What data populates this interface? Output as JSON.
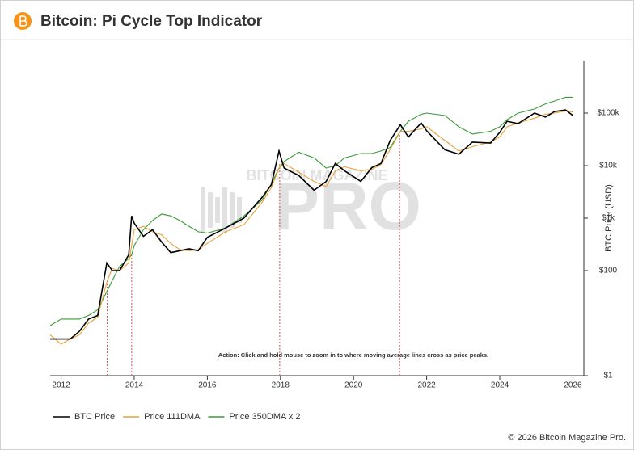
{
  "header": {
    "title": "Bitcoin: Pi Cycle Top Indicator"
  },
  "chart_data": {
    "type": "line",
    "log_y": true,
    "y_label": "BTC Price (USD)",
    "annotation": "Action: Click and hold mouse to zoom in to where moving average lines cross as price peaks.",
    "watermark_top": "BITCOIN MAGAZINE",
    "watermark": "PRO",
    "x": [
      2011.7,
      2012.0,
      2012.25,
      2012.5,
      2012.75,
      2013.0,
      2013.25,
      2013.4,
      2013.6,
      2013.85,
      2013.93,
      2014.0,
      2014.25,
      2014.5,
      2014.75,
      2015.0,
      2015.25,
      2015.5,
      2015.75,
      2016.0,
      2016.5,
      2017.0,
      2017.5,
      2017.75,
      2017.96,
      2018.1,
      2018.5,
      2018.92,
      2019.25,
      2019.5,
      2019.75,
      2020.2,
      2020.5,
      2020.75,
      2021.0,
      2021.28,
      2021.5,
      2021.85,
      2022.0,
      2022.5,
      2022.88,
      2023.25,
      2023.75,
      2024.0,
      2024.2,
      2024.5,
      2024.95,
      2025.25,
      2025.5,
      2025.8,
      2026.0
    ],
    "series": [
      {
        "name": "BTC Price",
        "color": "#000000",
        "values": [
          5,
          5,
          5,
          7,
          12,
          14,
          140,
          100,
          100,
          200,
          1100,
          800,
          450,
          600,
          350,
          220,
          240,
          260,
          240,
          430,
          650,
          1000,
          2500,
          4300,
          19000,
          9000,
          6500,
          3400,
          5000,
          11000,
          8000,
          5000,
          9200,
          11000,
          30000,
          60000,
          35000,
          65000,
          46000,
          20000,
          16500,
          28000,
          27000,
          43000,
          70000,
          63000,
          100000,
          84000,
          107000,
          115000,
          90000
        ]
      },
      {
        "name": "Price 111DMA",
        "color": "#e8a23a",
        "values": [
          6,
          4,
          5,
          6,
          10,
          13,
          60,
          110,
          100,
          140,
          300,
          600,
          700,
          550,
          480,
          330,
          250,
          240,
          250,
          330,
          550,
          750,
          2000,
          3800,
          9000,
          11000,
          7500,
          5000,
          4000,
          8000,
          9500,
          8000,
          8500,
          10500,
          20000,
          45000,
          45000,
          50000,
          55000,
          30000,
          19000,
          23000,
          28000,
          35000,
          55000,
          65000,
          80000,
          95000,
          100000,
          110000,
          105000
        ]
      },
      {
        "name": "Price 350DMA x 2",
        "color": "#3a9a3a",
        "values": [
          9,
          12,
          12,
          12,
          14,
          18,
          40,
          65,
          120,
          170,
          200,
          300,
          600,
          900,
          1200,
          1100,
          900,
          700,
          550,
          520,
          650,
          1100,
          2200,
          4500,
          9000,
          12000,
          18000,
          14000,
          9000,
          10000,
          14000,
          17000,
          17000,
          19000,
          22000,
          45000,
          70000,
          95000,
          100000,
          90000,
          55000,
          40000,
          45000,
          55000,
          75000,
          100000,
          120000,
          150000,
          170000,
          200000,
          200000
        ]
      }
    ],
    "crossings": [
      2013.26,
      2013.93,
      2017.98,
      2021.26
    ],
    "crossing_color": "#e05050",
    "xlim": [
      2011.7,
      2026.3
    ],
    "xticks": [
      2012,
      2014,
      2016,
      2018,
      2020,
      2022,
      2024,
      2026
    ],
    "ylim": [
      1,
      1000000
    ],
    "yticks": [
      {
        "value": 1,
        "label": "$1"
      },
      {
        "value": 100,
        "label": "$100"
      },
      {
        "value": 1000,
        "label": "$1k"
      },
      {
        "value": 10000,
        "label": "$10k"
      },
      {
        "value": 100000,
        "label": "$100k"
      }
    ]
  },
  "footer": {
    "text": "© 2026 Bitcoin Magazine Pro."
  }
}
